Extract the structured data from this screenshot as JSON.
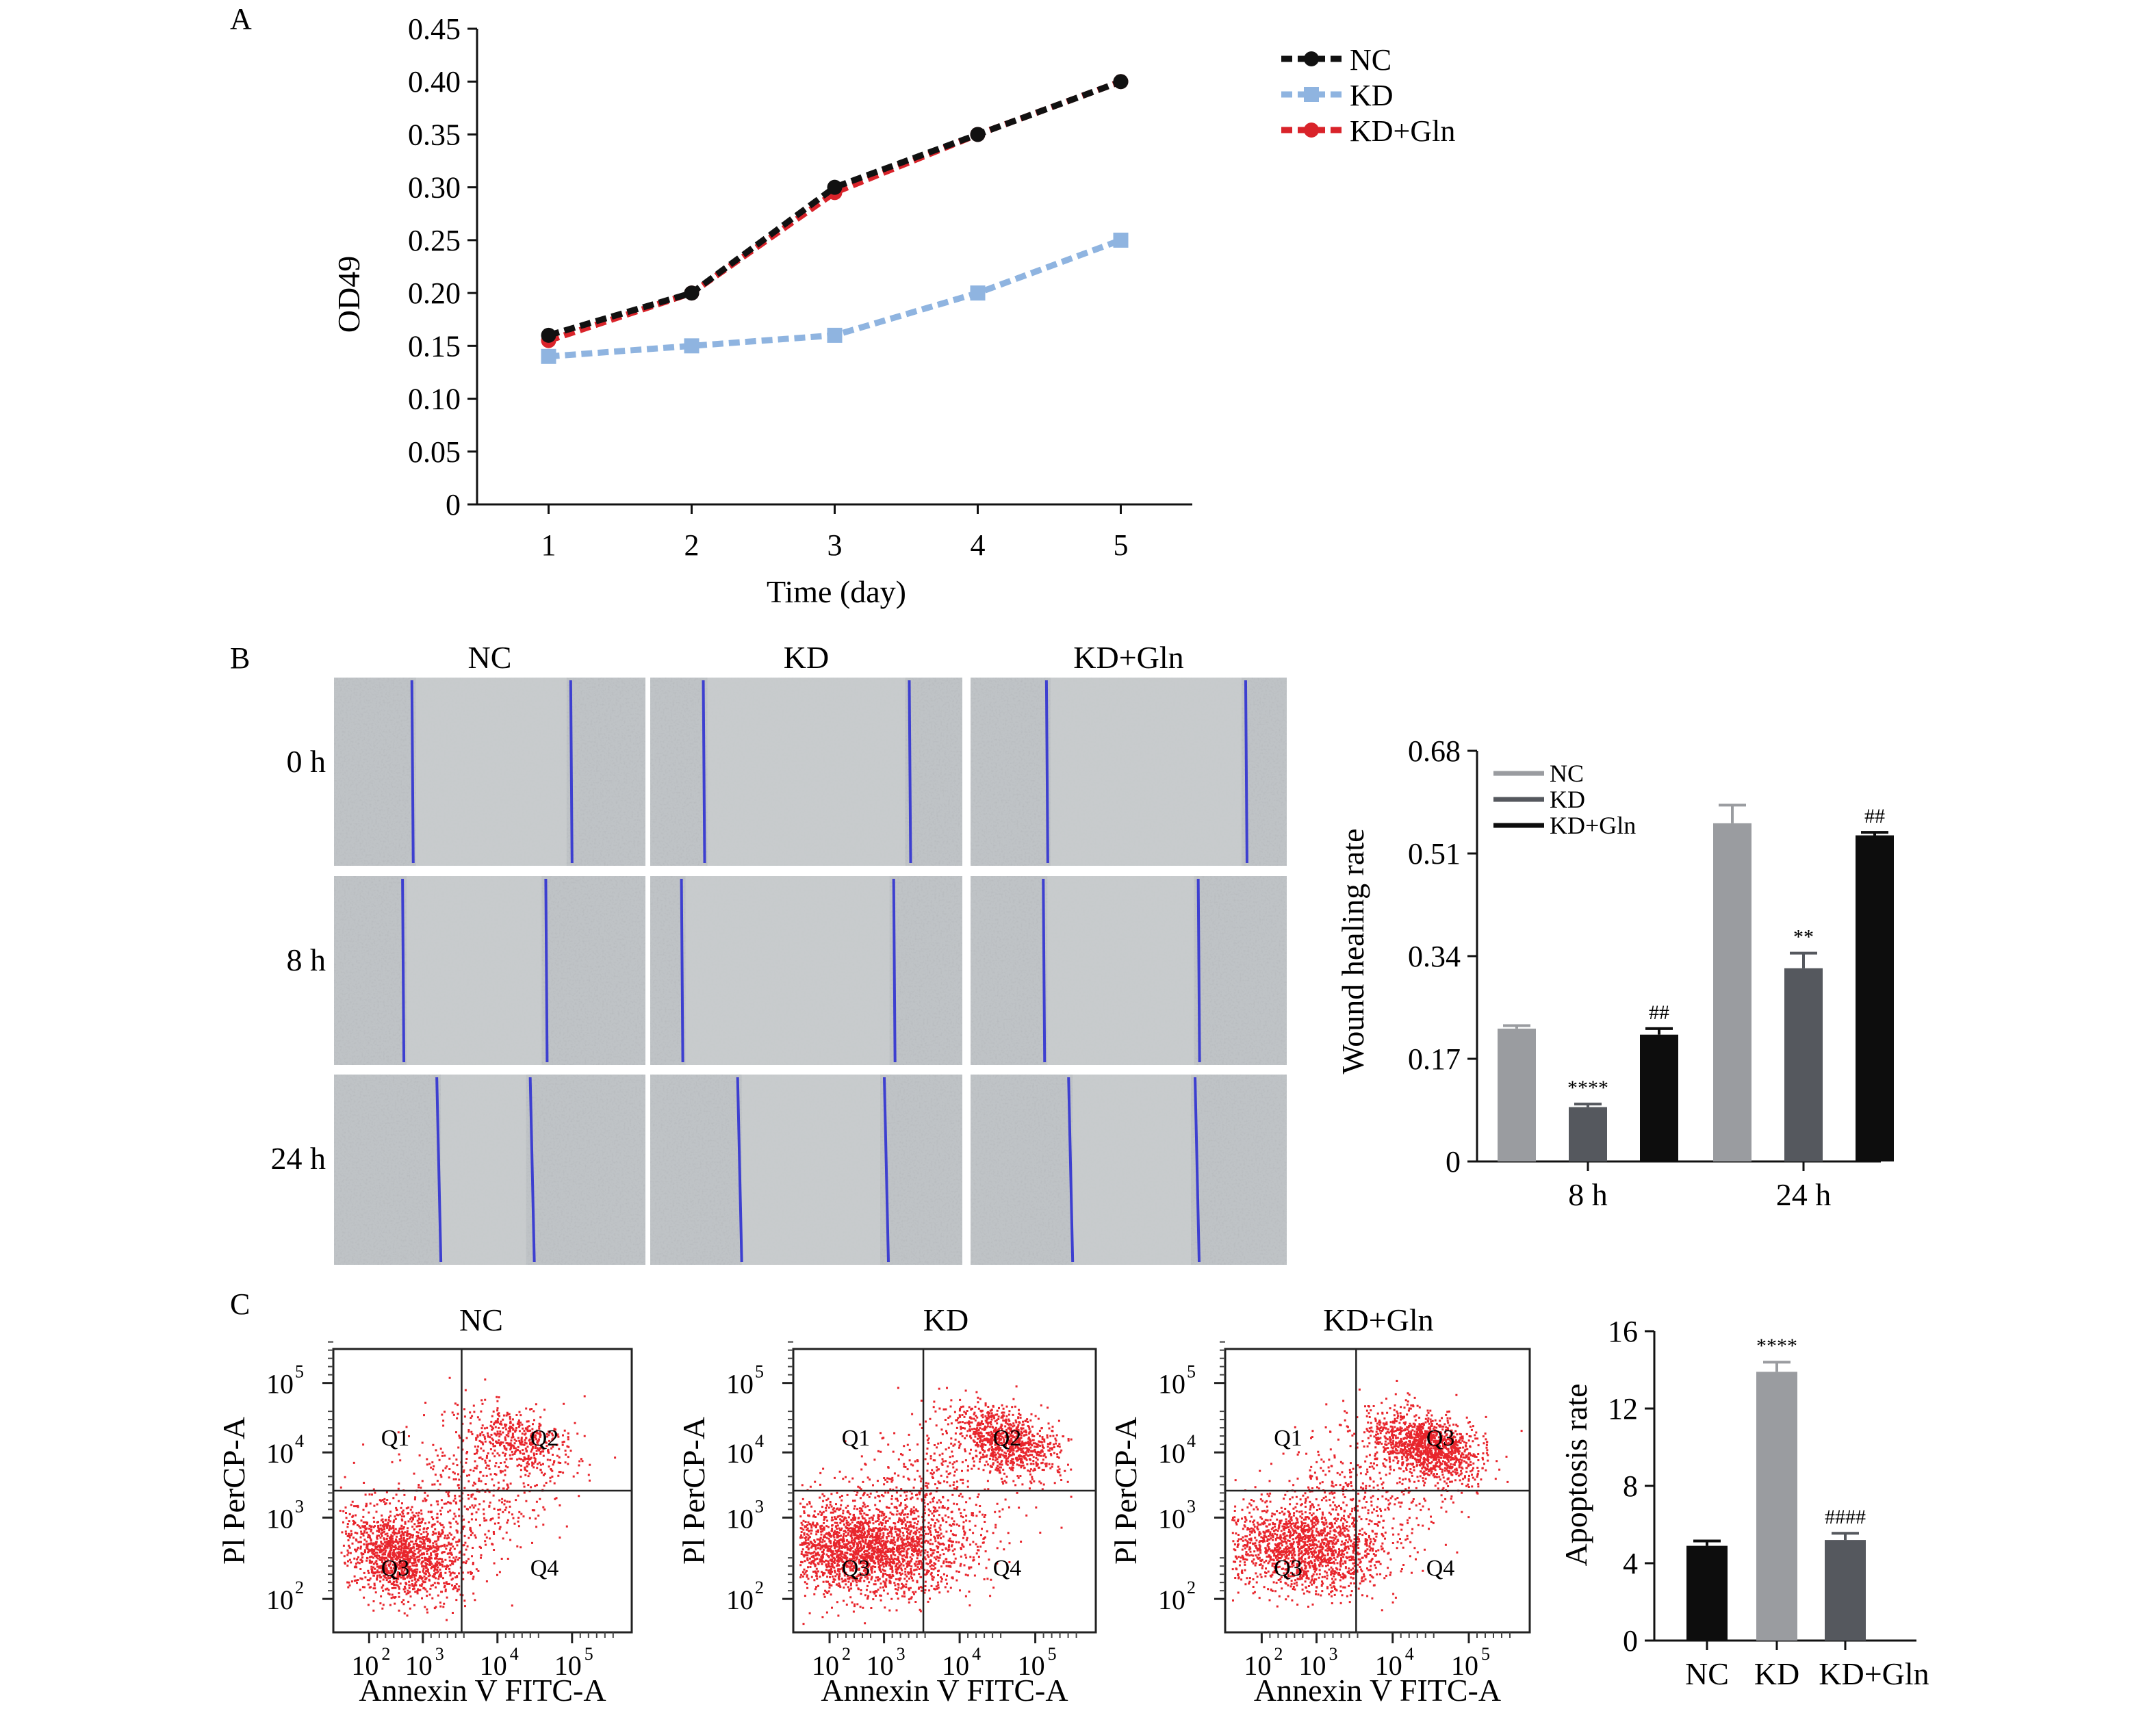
{
  "colors": {
    "nc_line": "#111111",
    "kd_line": "#8fb4e0",
    "kdgln_line": "#d9232a",
    "bar_nc": "#9a9ca0",
    "bar_kd": "#55585e",
    "bar_kdgln": "#0d0d0d",
    "scatter": "#e8252c",
    "wound_line": "#3d3fd0",
    "micro_bg": "#bfc3c6"
  },
  "panelA": {
    "letter": "A",
    "chart_data": {
      "type": "line",
      "title": "",
      "xlabel": "Time (day)",
      "ylabel": "OD49",
      "x": [
        1,
        2,
        3,
        4,
        5
      ],
      "xticks": [
        "1",
        "2",
        "3",
        "4",
        "5"
      ],
      "yticks": [
        "0",
        "0.05",
        "0.10",
        "0.15",
        "0.20",
        "0.25",
        "0.30",
        "0.35",
        "0.40",
        "0.45"
      ],
      "ylim": [
        0,
        0.45
      ],
      "xlim": [
        0.5,
        5.5
      ],
      "legend_position": "top-right",
      "series": [
        {
          "name": "NC",
          "values": [
            0.16,
            0.2,
            0.3,
            0.35,
            0.4
          ],
          "color": "#111111"
        },
        {
          "name": "KD",
          "values": [
            0.14,
            0.15,
            0.16,
            0.2,
            0.25
          ],
          "color": "#8fb4e0"
        },
        {
          "name": "KD+Gln",
          "values": [
            0.155,
            0.2,
            0.295,
            0.35,
            0.4
          ],
          "color": "#d9232a"
        }
      ]
    }
  },
  "panelB": {
    "letter": "B",
    "columns": [
      "NC",
      "KD",
      "KD+Gln"
    ],
    "rows": [
      "0 h",
      "8 h",
      "24 h"
    ],
    "wound_lines": [
      [
        [
          0.25,
          0.76
        ],
        [
          0.17,
          0.83
        ],
        [
          0.24,
          0.87
        ]
      ],
      [
        [
          0.22,
          0.68
        ],
        [
          0.1,
          0.78
        ],
        [
          0.23,
          0.72
        ]
      ],
      [
        [
          0.33,
          0.63
        ],
        [
          0.28,
          0.75
        ],
        [
          0.31,
          0.71
        ]
      ]
    ],
    "chart_data": {
      "type": "bar",
      "title": "",
      "xlabel": "",
      "ylabel": "Wound healing rate",
      "categories": [
        "8 h",
        "24 h"
      ],
      "yticks": [
        "0",
        "0.17",
        "0.34",
        "0.51",
        "0.68"
      ],
      "ylim": [
        0,
        0.68
      ],
      "legend_position": "top-left",
      "series": [
        {
          "name": "NC",
          "values": [
            0.22,
            0.56
          ],
          "errors": [
            0.005,
            0.03
          ],
          "color": "#9a9ca0"
        },
        {
          "name": "KD",
          "values": [
            0.09,
            0.32
          ],
          "errors": [
            0.005,
            0.025
          ],
          "color": "#55585e"
        },
        {
          "name": "KD+Gln",
          "values": [
            0.21,
            0.54
          ],
          "errors": [
            0.01,
            0.005
          ],
          "color": "#0d0d0d"
        }
      ],
      "annotations": [
        {
          "category": "8 h",
          "series": "KD",
          "text": "****"
        },
        {
          "category": "8 h",
          "series": "KD+Gln",
          "text": "##"
        },
        {
          "category": "24 h",
          "series": "KD",
          "text": "**"
        },
        {
          "category": "24 h",
          "series": "KD+Gln",
          "text": "##"
        }
      ]
    }
  },
  "panelC": {
    "letter": "C",
    "flow_plots": [
      {
        "title": "NC",
        "quadrants": [
          "Q1",
          "Q2",
          "Q3",
          "Q4"
        ]
      },
      {
        "title": "KD",
        "quadrants": [
          "Q1",
          "Q2",
          "Q3",
          "Q4"
        ]
      },
      {
        "title": "KD+Gln",
        "quadrants": [
          "Q1",
          "Q3",
          "Q3",
          "Q4"
        ]
      }
    ],
    "flow_xlabel": "Annexin V FITC-A",
    "flow_ylabel": "Pl PerCP-A",
    "flow_xticks": [
      "10",
      "10",
      "10",
      "10"
    ],
    "flow_xtick_exps": [
      "2",
      "3",
      "4",
      "5"
    ],
    "flow_yticks": [
      "10",
      "10",
      "10",
      "10"
    ],
    "flow_ytick_exps": [
      "2",
      "3",
      "4",
      "5"
    ],
    "chart_data": {
      "type": "bar",
      "title": "",
      "xlabel": "",
      "ylabel": "Apoptosis rate",
      "categories": [
        "NC",
        "KD",
        "KD+Gln"
      ],
      "values": [
        4.9,
        13.9,
        5.2
      ],
      "errors": [
        0.25,
        0.5,
        0.35
      ],
      "colors": [
        "#0d0d0d",
        "#9a9ca0",
        "#55585e"
      ],
      "yticks": [
        "0",
        "4",
        "8",
        "12",
        "16"
      ],
      "ylim": [
        0,
        16
      ],
      "annotations": [
        {
          "category": "KD",
          "text": "****"
        },
        {
          "category": "KD+Gln",
          "text": "####"
        }
      ]
    }
  }
}
